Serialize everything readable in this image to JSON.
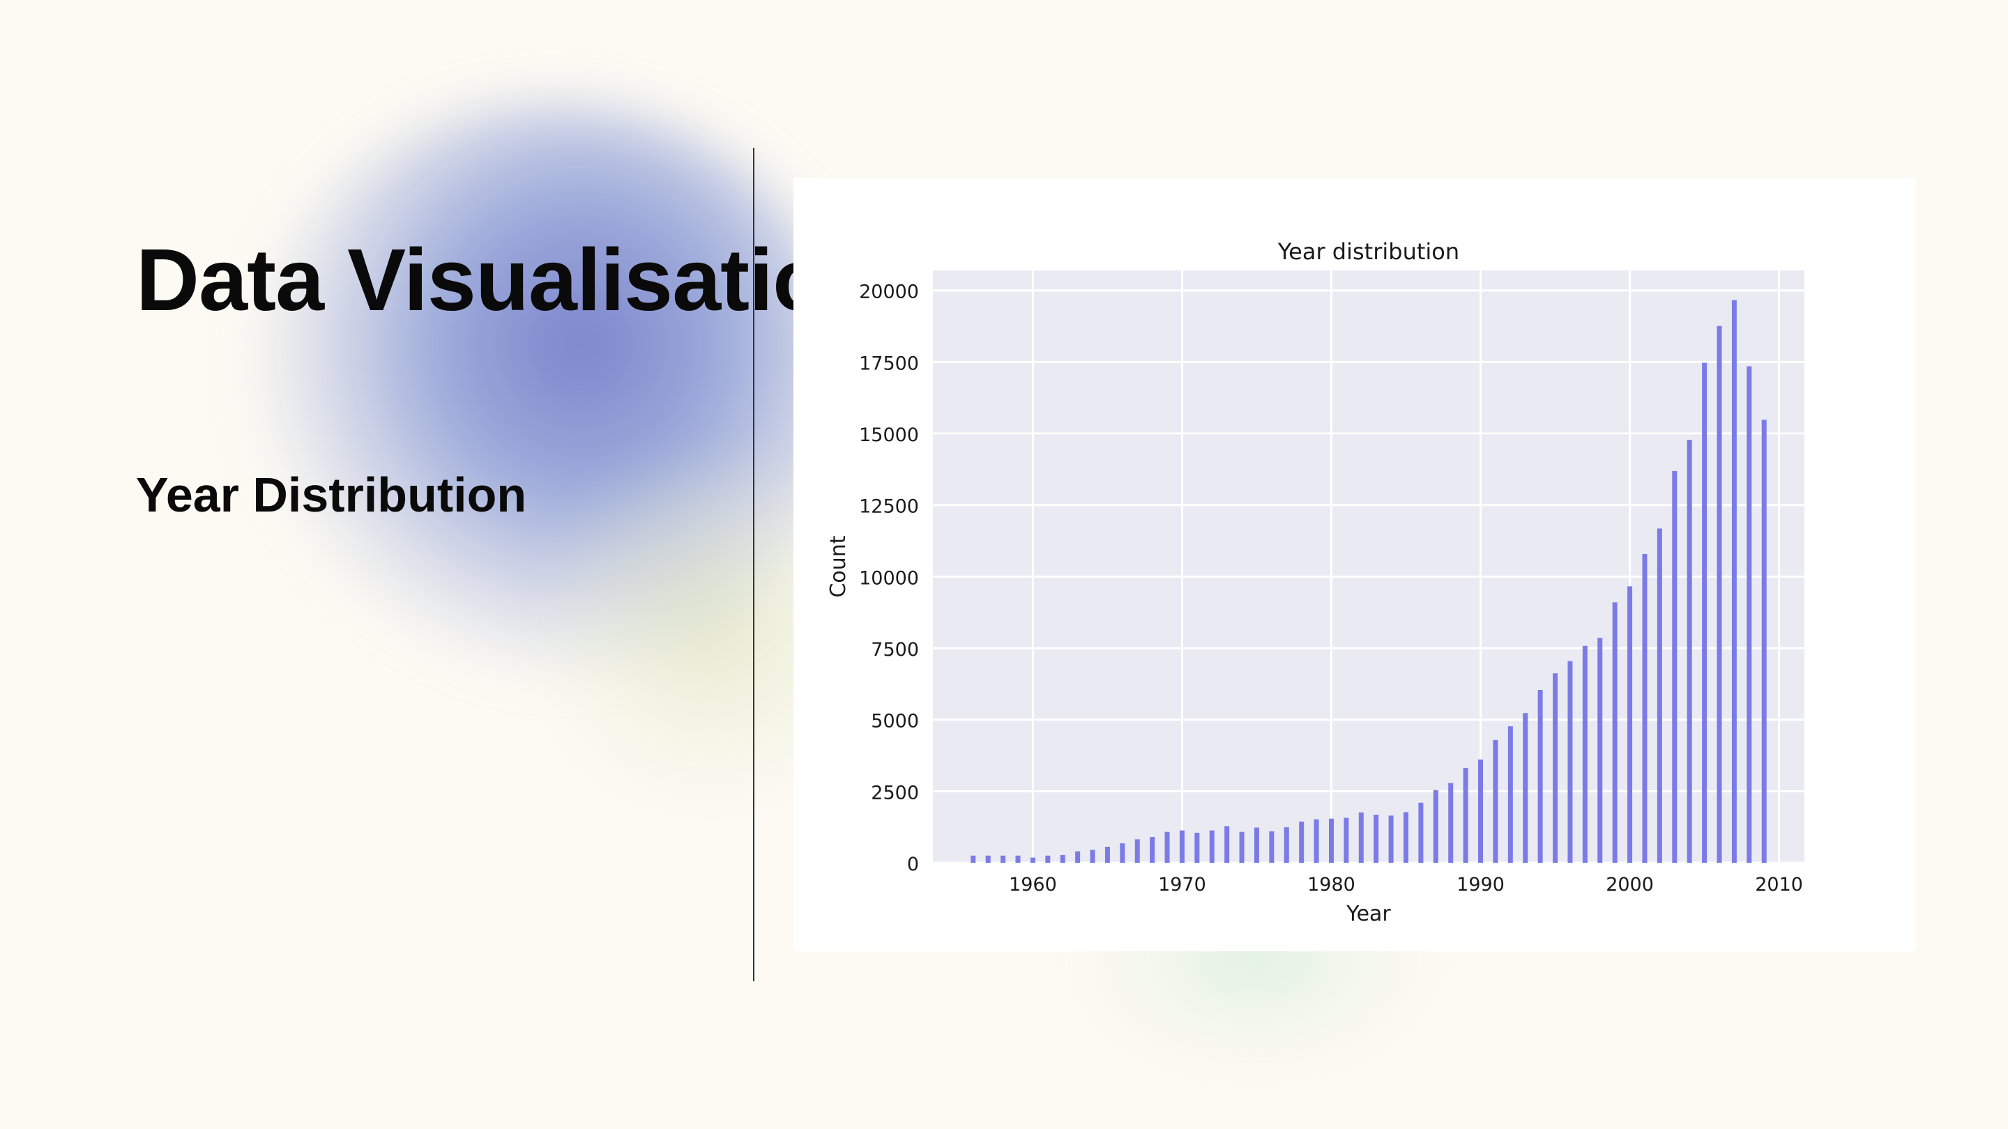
{
  "slide": {
    "title": "Data Visualisation",
    "subtitle": "Year Distribution"
  },
  "colors": {
    "background": "#fcfaf3",
    "bar": "#7b7be8",
    "plot_background": "#eaeaf2",
    "grid": "#ffffff"
  },
  "chart_data": {
    "type": "bar",
    "title": "Year distribution",
    "xlabel": "Year",
    "ylabel": "Count",
    "xlim": [
      1953.3,
      2011.7
    ],
    "ylim": [
      0,
      20700
    ],
    "xticks": [
      1960,
      1970,
      1980,
      1990,
      2000,
      2010
    ],
    "yticks": [
      0,
      2500,
      5000,
      7500,
      10000,
      12500,
      15000,
      17500,
      20000
    ],
    "grid": true,
    "legend": "none",
    "x": [
      1956,
      1957,
      1958,
      1959,
      1960,
      1961,
      1962,
      1963,
      1964,
      1965,
      1966,
      1967,
      1968,
      1969,
      1970,
      1971,
      1972,
      1973,
      1974,
      1975,
      1976,
      1977,
      1978,
      1979,
      1980,
      1981,
      1982,
      1983,
      1984,
      1985,
      1986,
      1987,
      1988,
      1989,
      1990,
      1991,
      1992,
      1993,
      1994,
      1995,
      1996,
      1997,
      1998,
      1999,
      2000,
      2001,
      2002,
      2003,
      2004,
      2005,
      2006,
      2007,
      2008,
      2009
    ],
    "values": [
      250,
      250,
      250,
      250,
      180,
      250,
      270,
      400,
      450,
      560,
      680,
      820,
      900,
      1080,
      1130,
      1050,
      1130,
      1280,
      1080,
      1230,
      1100,
      1240,
      1440,
      1520,
      1540,
      1570,
      1760,
      1680,
      1650,
      1770,
      2100,
      2540,
      2790,
      3310,
      3610,
      4290,
      4770,
      5230,
      6040,
      6620,
      7050,
      7580,
      7860,
      9100,
      9660,
      10790,
      11680,
      13690,
      14780,
      17470,
      18760,
      19660,
      17350,
      15480
    ]
  }
}
